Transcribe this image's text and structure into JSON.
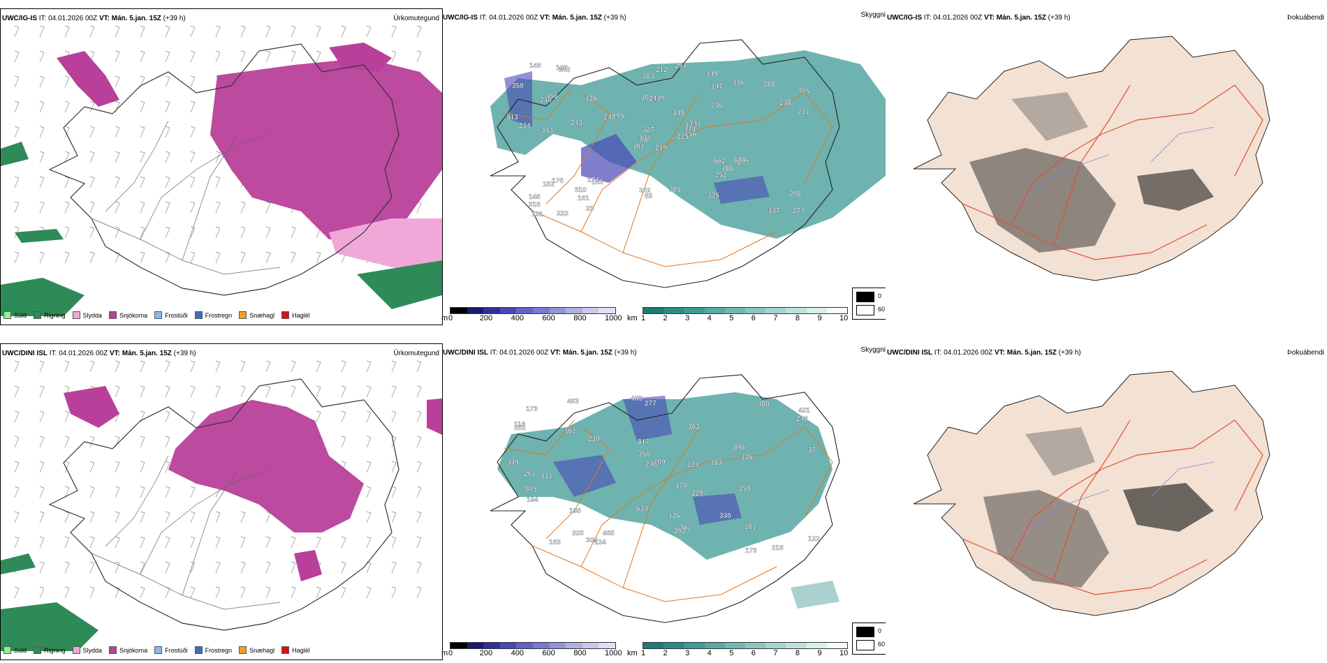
{
  "rows": [
    {
      "precip": {
        "model": "UWC/IG-IS",
        "it_label": "IT:",
        "it": "04.01.2026 00Z",
        "vt_label": "VT:",
        "vt": "Mán. 5.jan. 15Z",
        "lead": "(+39 h)",
        "type": "Úrkomutegund"
      },
      "cloud": {
        "model": "UWC/IG-IS",
        "it_label": "IT:",
        "it": "04.01.2026 00Z",
        "vt_label": "VT:",
        "vt": "Mán. 5.jan. 15Z",
        "lead": "(+39 h)",
        "type": "Skyggni",
        "labels": [
          "219",
          "238",
          "73",
          "146",
          "135",
          "183",
          "149",
          "39",
          "147",
          "225",
          "382",
          "274",
          "343",
          "705",
          "101",
          "236",
          "222",
          "101",
          "348",
          "176",
          "195",
          "316",
          "161",
          "241",
          "741",
          "277",
          "456",
          "283",
          "234",
          "662",
          "231",
          "134",
          "362",
          "327",
          "126",
          "116",
          "174",
          "137",
          "208",
          "680",
          "294",
          "240",
          "243",
          "252",
          "23",
          "513",
          "114",
          "101",
          "83",
          "156",
          "152",
          "238",
          "350",
          "188",
          "335",
          "310",
          "106",
          "148",
          "385",
          "288",
          "212"
        ]
      },
      "fog": {
        "model": "UWC/IG-IS",
        "it_label": "IT:",
        "it": "04.01.2026 00Z",
        "vt_label": "VT:",
        "vt": "Mán. 5.jan. 15Z",
        "lead": "(+39 h)",
        "type": "Þokuábendi"
      }
    },
    {
      "precip": {
        "model": "UWC/DINI ISL",
        "it_label": "IT:",
        "it": "04.01.2026 00Z",
        "vt_label": "VT:",
        "vt": "Mán. 5.jan. 15Z",
        "lead": "(+39 h)",
        "type": "Úrkomutegund"
      },
      "cloud": {
        "model": "UWC/DINI ISL",
        "it_label": "IT:",
        "it": "04.01.2026 00Z",
        "vt_label": "VT:",
        "vt": "Mán. 5.jan. 15Z",
        "lead": "(+39 h)",
        "type": "Skyggni",
        "labels": [
          "349",
          "277",
          "846",
          "421",
          "118",
          "218",
          "431",
          "303",
          "817",
          "480",
          "109",
          "259",
          "463",
          "252",
          "161",
          "195",
          "391",
          "201",
          "170",
          "634",
          "330",
          "181",
          "248",
          "350",
          "203",
          "246",
          "229",
          "463",
          "124",
          "202",
          "845",
          "173",
          "124",
          "163",
          "309",
          "194",
          "126",
          "173",
          "465",
          "230",
          "126",
          "183",
          "122",
          "37"
        ]
      },
      "fog": {
        "model": "UWC/DINI ISL",
        "it_label": "IT:",
        "it": "04.01.2026 00Z",
        "vt_label": "VT:",
        "vt": "Mán. 5.jan. 15Z",
        "lead": "(+39 h)",
        "type": "Þokuábendi"
      }
    }
  ],
  "precip_legend": [
    {
      "label": "Súld",
      "color": "#90ee90"
    },
    {
      "label": "Rigning",
      "color": "#2e8b57"
    },
    {
      "label": "Slydda",
      "color": "#f0a8d8"
    },
    {
      "label": "Snjókoma",
      "color": "#b8409a"
    },
    {
      "label": "Frostúði",
      "color": "#87b8f0"
    },
    {
      "label": "Frostregn",
      "color": "#3a70c0"
    },
    {
      "label": "Snæhagl",
      "color": "#f0a020"
    },
    {
      "label": "Haglél",
      "color": "#e01010"
    }
  ],
  "height_bar": {
    "unit": "m",
    "ticks": [
      "0",
      "200",
      "400",
      "600",
      "800",
      "1000"
    ],
    "colors": [
      "#000000",
      "#1a1a6e",
      "#30309a",
      "#4848b8",
      "#6262c8",
      "#7a7ad0",
      "#9494d8",
      "#b0b0e0",
      "#c8c8ea",
      "#e0e0f4"
    ]
  },
  "vis_bar": {
    "unit": "km",
    "ticks": [
      "1",
      "2",
      "3",
      "4",
      "5",
      "6",
      "7",
      "8",
      "9",
      "10"
    ],
    "colors": [
      "#1e7a74",
      "#2e8a84",
      "#3e9a94",
      "#58aaa4",
      "#72b8b2",
      "#8cc6c0",
      "#a6d4d0",
      "#c0e2de",
      "#daf0ee",
      "#f4fbfa"
    ]
  },
  "fog_key": {
    "black": "0",
    "white": "60"
  },
  "colors": {
    "snow": "#b8409a",
    "rain": "#2e8b57",
    "sleet": "#f0a8d8",
    "cloud": "#3e9a94",
    "lowcloud": "#4848b8",
    "land": "#f3e1d3",
    "road": "#e06030",
    "river": "#8888e0"
  }
}
